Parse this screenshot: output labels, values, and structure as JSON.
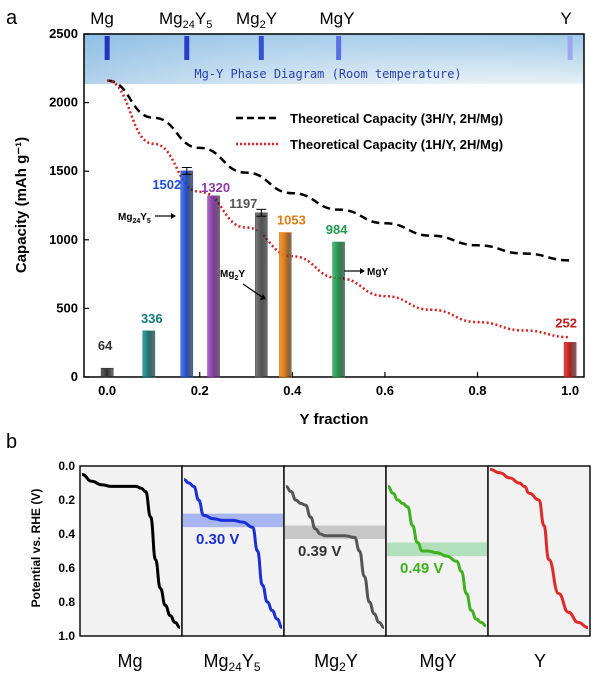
{
  "panel_a": {
    "letter": "a",
    "chart_data": {
      "type": "bar",
      "xlabel": "Y fraction",
      "ylabel": "Capacity (mAh g⁻¹)",
      "xlim": [
        -0.05,
        1.03
      ],
      "ylim": [
        0,
        2500
      ],
      "x_ticks": [
        0.0,
        0.2,
        0.4,
        0.6,
        0.8,
        1.0
      ],
      "x_tick_labels": [
        "0.0",
        "0.2",
        "0.4",
        "0.6",
        "0.8",
        "1.0"
      ],
      "y_ticks": [
        0,
        500,
        1000,
        1500,
        2000,
        2500
      ],
      "y_tick_labels": [
        "0",
        "500",
        "1000",
        "1500",
        "2000",
        "2500"
      ],
      "bars": [
        {
          "x": 0.0,
          "value": 64,
          "label": "64",
          "color": "#333333"
        },
        {
          "x": 0.09,
          "value": 336,
          "label": "336",
          "color": "#127a7a"
        },
        {
          "x": 0.172,
          "value": 1502,
          "label": "1502",
          "color": "#1f4fd0",
          "error": 25
        },
        {
          "x": 0.23,
          "value": 1320,
          "label": "1320",
          "color": "#8a3aa8"
        },
        {
          "x": 0.333,
          "value": 1197,
          "label": "1197",
          "color": "#555555",
          "error": 25
        },
        {
          "x": 0.385,
          "value": 1053,
          "label": "1053",
          "color": "#e07a12"
        },
        {
          "x": 0.5,
          "value": 984,
          "label": "984",
          "color": "#1f9a50"
        },
        {
          "x": 1.0,
          "value": 252,
          "label": "252",
          "color": "#c41a1a"
        }
      ],
      "series": [
        {
          "name": "Theoretical Capacity (3H/Y, 2H/Mg)",
          "style": "dashed",
          "color": "#000000",
          "x": [
            0.0,
            0.1,
            0.2,
            0.3,
            0.4,
            0.5,
            0.6,
            0.7,
            0.8,
            0.9,
            1.0
          ],
          "values": [
            2160,
            1890,
            1670,
            1490,
            1340,
            1220,
            1120,
            1030,
            960,
            900,
            850
          ]
        },
        {
          "name": "Theoretical Capacity (1H/Y, 2H/Mg)",
          "style": "dotted",
          "color": "#d62020",
          "x": [
            0.0,
            0.1,
            0.2,
            0.3,
            0.4,
            0.5,
            0.6,
            0.7,
            0.8,
            0.9,
            1.0
          ],
          "values": [
            2160,
            1700,
            1350,
            1090,
            880,
            720,
            590,
            490,
            400,
            340,
            290
          ]
        }
      ],
      "legend_position": "top-right",
      "phase_banner_text": "Mg-Y Phase Diagram (Room temperature)",
      "phase_markers": [
        {
          "x": 0.0,
          "color": "#2233c0"
        },
        {
          "x": 0.172,
          "color": "#2a3fc8"
        },
        {
          "x": 0.333,
          "color": "#3550d0"
        },
        {
          "x": 0.5,
          "color": "#5a70e0"
        },
        {
          "x": 1.0,
          "color": "#9aa8ee"
        }
      ],
      "annotations": [
        {
          "text": "Mg₂₄Y₅",
          "x": 0.06,
          "y": 1180
        },
        {
          "text": "Mg₂Y",
          "x": 0.295,
          "y": 690
        },
        {
          "text": "MgY",
          "x": 0.575,
          "y": 775
        }
      ]
    },
    "top_phase_labels": {
      "mg": "Mg",
      "mg24y5_base": "Mg",
      "mg24y5_sub1": "24",
      "mg24y5_mid": "Y",
      "mg24y5_sub2": "5",
      "mg2y_base": "Mg",
      "mg2y_sub": "2",
      "mg2y_end": "Y",
      "mgy": "MgY",
      "y": "Y"
    }
  },
  "panel_b": {
    "letter": "b",
    "chart_data": {
      "type": "line",
      "ylabel": "Potential vs. RHE (V)",
      "ylim": [
        0.0,
        1.0
      ],
      "y_ticks": [
        0.0,
        0.2,
        0.4,
        0.6,
        0.8,
        1.0
      ],
      "y_tick_labels": [
        "0.0",
        "0.2",
        "0.4",
        "0.6",
        "0.8",
        "1.0"
      ],
      "y_inverted": true,
      "series": [
        {
          "name": "Mg",
          "color": "#000000",
          "x": [
            0.0,
            0.1,
            0.2,
            0.3,
            0.4,
            0.5,
            0.55,
            0.6,
            0.65,
            0.7,
            0.75,
            0.8,
            0.85,
            0.9,
            0.95,
            1.0
          ],
          "values": [
            0.05,
            0.09,
            0.11,
            0.12,
            0.12,
            0.12,
            0.12,
            0.13,
            0.15,
            0.3,
            0.55,
            0.72,
            0.82,
            0.88,
            0.92,
            0.95
          ]
        },
        {
          "name": "Mg24Y5",
          "color": "#1c2fd6",
          "x": [
            0.0,
            0.05,
            0.1,
            0.15,
            0.2,
            0.3,
            0.4,
            0.5,
            0.6,
            0.7,
            0.75,
            0.8,
            0.85,
            0.9,
            0.95,
            1.0
          ],
          "values": [
            0.08,
            0.1,
            0.12,
            0.2,
            0.29,
            0.31,
            0.32,
            0.32,
            0.33,
            0.36,
            0.5,
            0.7,
            0.8,
            0.85,
            0.9,
            0.95
          ]
        },
        {
          "name": "Mg2Y",
          "color": "#555555",
          "x": [
            0.0,
            0.05,
            0.1,
            0.15,
            0.2,
            0.25,
            0.3,
            0.35,
            0.4,
            0.5,
            0.6,
            0.7,
            0.75,
            0.8,
            0.85,
            0.9,
            0.95,
            1.0
          ],
          "values": [
            0.12,
            0.15,
            0.2,
            0.22,
            0.23,
            0.3,
            0.37,
            0.4,
            0.41,
            0.41,
            0.41,
            0.42,
            0.5,
            0.65,
            0.8,
            0.87,
            0.92,
            0.95
          ]
        },
        {
          "name": "MgY",
          "color": "#3fb020",
          "x": [
            0.0,
            0.05,
            0.1,
            0.15,
            0.2,
            0.25,
            0.3,
            0.35,
            0.4,
            0.5,
            0.6,
            0.7,
            0.75,
            0.8,
            0.85,
            0.9,
            0.95,
            1.0
          ],
          "values": [
            0.12,
            0.16,
            0.2,
            0.22,
            0.24,
            0.35,
            0.45,
            0.5,
            0.5,
            0.51,
            0.53,
            0.56,
            0.62,
            0.75,
            0.85,
            0.9,
            0.92,
            0.94
          ]
        },
        {
          "name": "Y",
          "color": "#e02a2a",
          "x": [
            0.0,
            0.1,
            0.2,
            0.3,
            0.35,
            0.4,
            0.5,
            0.55,
            0.6,
            0.7,
            0.8,
            0.9,
            1.0
          ],
          "values": [
            0.02,
            0.04,
            0.07,
            0.1,
            0.12,
            0.16,
            0.2,
            0.35,
            0.55,
            0.75,
            0.86,
            0.92,
            0.95
          ]
        }
      ],
      "bands": [
        {
          "panel": 1,
          "from": 0.28,
          "to": 0.36,
          "color": "#9aaaf0"
        },
        {
          "panel": 2,
          "from": 0.35,
          "to": 0.43,
          "color": "#bfbfbf"
        },
        {
          "panel": 3,
          "from": 0.45,
          "to": 0.53,
          "color": "#a7dcb3"
        }
      ],
      "voltages": [
        {
          "panel": 1,
          "label": "0.30 V",
          "color": "#1c2fd6"
        },
        {
          "panel": 2,
          "label": "0.39 V",
          "color": "#333333"
        },
        {
          "panel": 3,
          "label": "0.49 V",
          "color": "#3fb020"
        }
      ]
    },
    "names": {
      "mg": "Mg",
      "mg24y5_base": "Mg",
      "mg24y5_sub1": "24",
      "mg24y5_mid": "Y",
      "mg24y5_sub2": "5",
      "mg2y_base": "Mg",
      "mg2y_sub": "2",
      "mg2y_end": "Y",
      "mgy": "MgY",
      "y": "Y"
    }
  }
}
